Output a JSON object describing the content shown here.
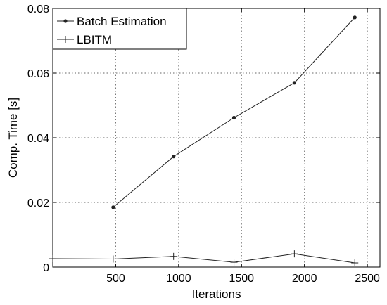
{
  "chart_data": {
    "type": "line",
    "title": "",
    "xlabel": "Iterations",
    "ylabel": "Comp. Time [s]",
    "xlim": [
      0,
      2600
    ],
    "ylim": [
      0,
      0.08
    ],
    "xticks": [
      500,
      1000,
      1500,
      2000,
      2500
    ],
    "xtick_labels": [
      "500",
      "1000",
      "1500",
      "2000",
      "2500"
    ],
    "yticks": [
      0,
      0.02,
      0.04,
      0.06,
      0.08
    ],
    "ytick_labels": [
      "0",
      "0.02",
      "0.04",
      "0.06",
      "0.08"
    ],
    "grid": true,
    "legend_position": "top-left",
    "series": [
      {
        "name": "Batch Estimation",
        "marker": "dot",
        "color": "#222222",
        "x": [
          480,
          960,
          1440,
          1920,
          2400
        ],
        "y": [
          0.0185,
          0.0342,
          0.0462,
          0.057,
          0.0772
        ]
      },
      {
        "name": "LBITM",
        "marker": "plus",
        "color": "#222222",
        "x": [
          0,
          480,
          960,
          1440,
          1920,
          2400
        ],
        "y": [
          0.0026,
          0.0025,
          0.0033,
          0.0015,
          0.0041,
          0.0013
        ]
      }
    ]
  }
}
